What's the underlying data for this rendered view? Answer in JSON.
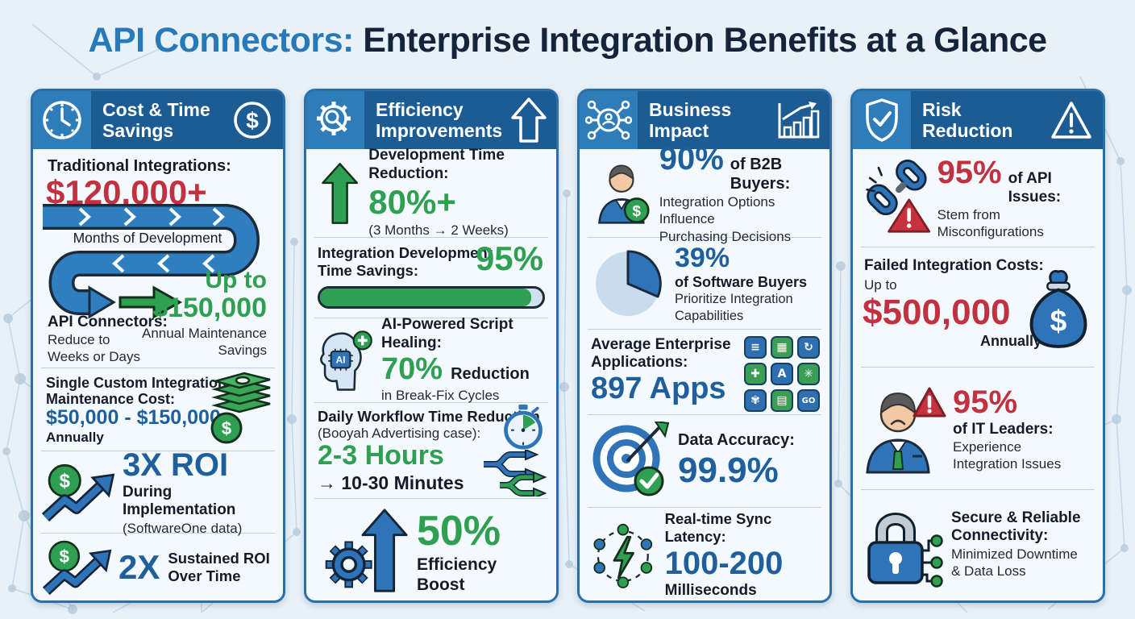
{
  "page_title": {
    "highlight": "API Connectors:",
    "rest": "Enterprise Integration Benefits at a Glance"
  },
  "icon_text": {
    "dollar": "$",
    "ai": "AI"
  },
  "colors": {
    "red": "#c13140",
    "green": "#2fa052",
    "blue": "#2f74b8",
    "stat_blue": "#1f5f9b",
    "header_dark": "#1d5c92",
    "header_light": "#2e7cb8",
    "card_border": "#2a6fa8",
    "background": "#e8f1f8"
  },
  "cards": [
    {
      "header": {
        "line1": "Cost & Time",
        "line2": "Savings",
        "left_icon": "clock-icon",
        "right_icon": "dollar-circle-icon"
      },
      "sections": {
        "traditional": {
          "label": "Traditional Integrations:",
          "value": "$120,000+",
          "path_label": "Months of Development",
          "api_label": "API Connectors:",
          "api_sub1": "Reduce to",
          "api_sub2": "Weeks or Days",
          "up_to": "Up to",
          "savings_value": "$150,000",
          "savings_sub1": "Annual Maintenance",
          "savings_sub2": "Savings"
        },
        "maintenance": {
          "label1": "Single Custom Integration",
          "label2": "Maintenance Cost:",
          "value": "$50,000 - $150,000",
          "suffix": "Annually"
        },
        "roi3x": {
          "value": "3X ROI",
          "label": "During Implementation",
          "source": "(SoftwareOne data)"
        },
        "roi2x": {
          "value": "2X",
          "label1": "Sustained ROI",
          "label2": "Over Time"
        }
      }
    },
    {
      "header": {
        "line1": "Efficiency",
        "line2": "Improvements",
        "left_icon": "gear-search-icon",
        "right_icon": "arrow-up-outline-icon"
      },
      "sections": {
        "dev_time": {
          "label": "Development Time Reduction:",
          "value": "80%+",
          "sub": "(3 Months → 2 Weeks)"
        },
        "integration_savings": {
          "label1": "Integration Development",
          "label2": "Time Savings:",
          "value": "95%",
          "progress_pct": 95
        },
        "ai_healing": {
          "label": "AI-Powered Script Healing:",
          "value": "70%",
          "suffix": "Reduction",
          "sub": "in Break-Fix Cycles"
        },
        "daily_workflow": {
          "label1": "Daily Workflow Time Reduction",
          "label2": "(Booyah Advertising case):",
          "value": "2-3 Hours",
          "sub": "→ 10-30 Minutes"
        },
        "efficiency_boost": {
          "value": "50%",
          "label": "Efficiency Boost"
        }
      }
    },
    {
      "header": {
        "line1": "Business",
        "line2": "Impact",
        "left_icon": "network-icon",
        "right_icon": "bar-chart-icon"
      },
      "sections": {
        "b2b": {
          "value": "90%",
          "label": "of B2B Buyers:",
          "sub1": "Integration Options Influence",
          "sub2": "Purchasing Decisions"
        },
        "buyers": {
          "value": "39%",
          "label": "of Software Buyers",
          "sub1": "Prioritize Integration",
          "sub2": "Capabilities"
        },
        "apps": {
          "label1": "Average Enterprise",
          "label2": "Applications:",
          "value": "897 Apps",
          "tiles": [
            "≡",
            "▦",
            "↻",
            "✚",
            "A",
            "✳",
            "✾",
            "▤",
            "GO"
          ]
        },
        "accuracy": {
          "label": "Data Accuracy:",
          "value": "99.9%"
        },
        "latency": {
          "label": "Real-time Sync Latency:",
          "value": "100-200",
          "sub": "Milliseconds"
        }
      }
    },
    {
      "header": {
        "line1": "Risk",
        "line2": "Reduction",
        "left_icon": "shield-check-icon",
        "right_icon": "warning-triangle-icon"
      },
      "sections": {
        "api_issues": {
          "value": "95%",
          "label": "of API Issues:",
          "sub1": "Stem from",
          "sub2": "Misconfigurations"
        },
        "failed": {
          "label": "Failed Integration Costs:",
          "pre": "Up to",
          "value": "$500,000",
          "suffix": "Annually"
        },
        "it_leaders": {
          "value": "95%",
          "label": "of IT Leaders:",
          "sub1": "Experience",
          "sub2": "Integration Issues"
        },
        "connectivity": {
          "label1": "Secure & Reliable",
          "label2": "Connectivity:",
          "sub1": "Minimized Downtime",
          "sub2": "& Data Loss"
        }
      }
    }
  ]
}
